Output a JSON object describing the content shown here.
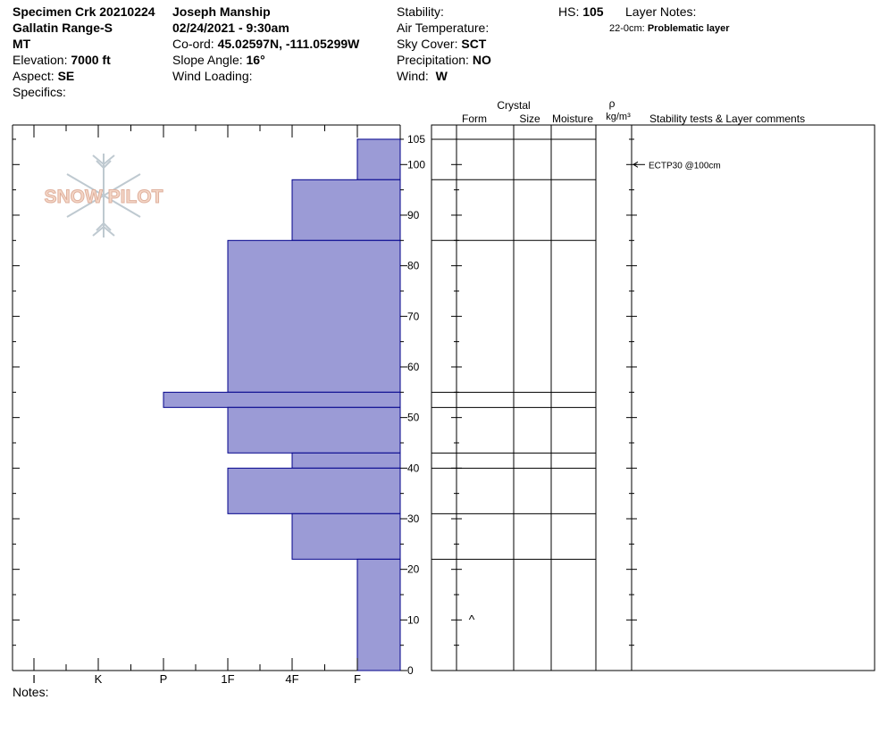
{
  "header": {
    "site_name": "Specimen Crk 20210224",
    "range": "Gallatin Range-S",
    "state": "MT",
    "elevation_label": "Elevation:",
    "elevation_value": "7000 ft",
    "aspect_label": "Aspect:",
    "aspect_value": "SE",
    "specifics_label": "Specifics:",
    "observer": "Joseph Manship",
    "datetime": "02/24/2021 - 9:30am",
    "coord_label": "Co-ord:",
    "coord_value": "45.02597N, -111.05299W",
    "slope_label": "Slope Angle:",
    "slope_value": "16°",
    "wind_loading_label": "Wind Loading:",
    "stability_label": "Stability:",
    "air_temp_label": "Air Temperature:",
    "sky_label": "Sky Cover:",
    "sky_value": "SCT",
    "precip_label": "Precipitation:",
    "precip_value": "NO",
    "wind_label": "Wind:",
    "wind_value": "W",
    "hs_label": "HS:",
    "hs_value": "105",
    "layer_notes_label": "Layer Notes:",
    "layer_note_range": "22-0cm:",
    "layer_note_text": "Problematic layer"
  },
  "logo_text": "SNOW PILOT",
  "columns": {
    "crystal": "Crystal",
    "form": "Form",
    "size": "Size",
    "moisture": "Moisture",
    "rho": "ρ",
    "density_unit": "kg/m³",
    "comments": "Stability tests & Layer comments"
  },
  "notes_label": "Notes:",
  "stability_tests": [
    {
      "depth": 100,
      "text": "ECTP30 @100cm"
    }
  ],
  "layer_form_symbols": [
    {
      "depth": 10,
      "symbol": "^"
    }
  ],
  "colors": {
    "hardness_fill": "#9b9bd6",
    "hardness_stroke": "#00008b"
  },
  "chart_data": {
    "type": "bar",
    "title": "",
    "ylabel": "",
    "ylim": [
      0,
      108
    ],
    "yticks": [
      0,
      10,
      20,
      30,
      40,
      50,
      60,
      70,
      80,
      90,
      100,
      105
    ],
    "hardness_scale": [
      "I",
      "K",
      "P",
      "1F",
      "4F",
      "F"
    ],
    "layers": [
      {
        "top": 105,
        "bottom": 97,
        "hardness": "F"
      },
      {
        "top": 97,
        "bottom": 85,
        "hardness": "4F"
      },
      {
        "top": 85,
        "bottom": 55,
        "hardness": "1F"
      },
      {
        "top": 55,
        "bottom": 52,
        "hardness": "P"
      },
      {
        "top": 52,
        "bottom": 43,
        "hardness": "1F"
      },
      {
        "top": 43,
        "bottom": 40,
        "hardness": "4F"
      },
      {
        "top": 40,
        "bottom": 31,
        "hardness": "1F"
      },
      {
        "top": 31,
        "bottom": 22,
        "hardness": "4F"
      },
      {
        "top": 22,
        "bottom": 0,
        "hardness": "F"
      }
    ]
  }
}
